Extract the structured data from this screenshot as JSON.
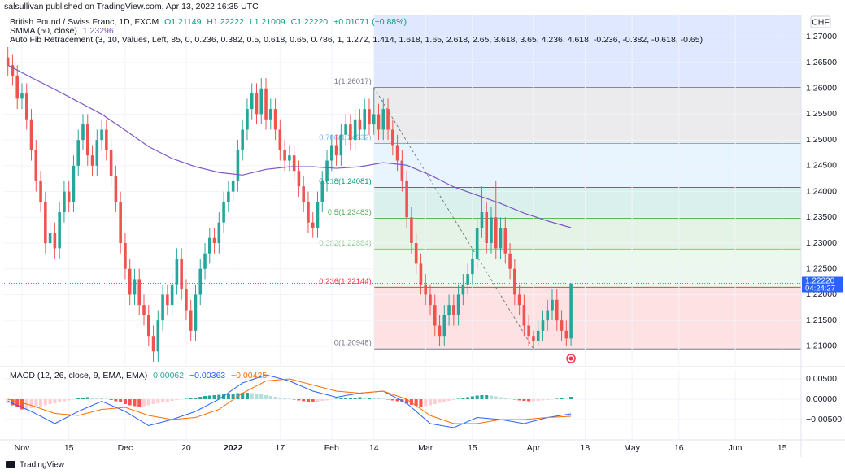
{
  "header": {
    "published": "salsullivan published on TradingView.com, Apr 13, 2022 16:35 UTC",
    "brand": "TradingView"
  },
  "chart_data": {
    "type": "candlestick",
    "symbol": "British Pound / Swiss Franc, 1D, FXCM",
    "ohlc_labels": [
      "O1.21149",
      "H1.22222",
      "L1.21009",
      "C1.22220"
    ],
    "change_label": "+0.01071 (+0.88%)",
    "currency": "CHF",
    "last_price_label": "1.22220",
    "countdown": "04:24:27",
    "up_color": "#26a69a",
    "down_color": "#ef5350",
    "open": [
      1.266,
      1.2645,
      1.2625,
      1.258,
      1.259,
      1.254,
      1.248,
      1.242,
      1.238,
      1.23,
      1.232,
      1.229,
      1.236,
      1.24,
      1.238,
      1.245,
      1.25,
      1.253,
      1.247,
      1.245,
      1.25,
      1.252,
      1.248,
      1.243,
      1.238,
      1.23,
      1.225,
      1.22,
      1.223,
      1.218,
      1.216,
      1.212,
      1.209,
      1.215,
      1.22,
      1.218,
      1.222,
      1.227,
      1.221,
      1.217,
      1.213,
      1.22,
      1.225,
      1.228,
      1.231,
      1.23,
      1.234,
      1.238,
      1.24,
      1.242,
      1.248,
      1.252,
      1.256,
      1.259,
      1.255,
      1.26,
      1.254,
      1.256,
      1.252,
      1.248,
      1.246,
      1.247,
      1.244,
      1.241,
      1.238,
      1.234,
      1.233,
      1.238,
      1.242,
      1.246,
      1.249,
      1.247,
      1.251,
      1.253,
      1.25,
      1.254,
      1.252,
      1.256,
      1.253,
      1.255,
      1.252,
      1.256,
      1.252,
      1.249,
      1.246,
      1.242,
      1.235,
      1.23,
      1.226,
      1.222,
      1.22,
      1.218,
      1.214,
      1.212,
      1.216,
      1.218,
      1.216,
      1.22,
      1.222,
      1.224,
      1.227,
      1.233,
      1.236,
      1.23,
      1.235,
      1.229,
      1.233,
      1.228,
      1.225,
      1.22,
      1.218,
      1.214,
      1.212,
      1.211,
      1.213,
      1.215,
      1.217,
      1.219,
      1.215,
      1.213,
      1.2115
    ],
    "high": [
      1.268,
      1.2665,
      1.2645,
      1.261,
      1.261,
      1.256,
      1.25,
      1.244,
      1.24,
      1.234,
      1.234,
      1.238,
      1.242,
      1.242,
      1.247,
      1.252,
      1.255,
      1.255,
      1.249,
      1.252,
      1.254,
      1.254,
      1.25,
      1.245,
      1.24,
      1.232,
      1.227,
      1.225,
      1.225,
      1.22,
      1.218,
      1.214,
      1.217,
      1.222,
      1.222,
      1.224,
      1.229,
      1.229,
      1.223,
      1.219,
      1.222,
      1.227,
      1.23,
      1.233,
      1.233,
      1.236,
      1.24,
      1.242,
      1.244,
      1.25,
      1.254,
      1.258,
      1.261,
      1.261,
      1.262,
      1.262,
      1.258,
      1.258,
      1.254,
      1.25,
      1.249,
      1.249,
      1.246,
      1.243,
      1.24,
      1.236,
      1.24,
      1.244,
      1.248,
      1.251,
      1.251,
      1.253,
      1.255,
      1.255,
      1.256,
      1.256,
      1.258,
      1.258,
      1.2602,
      1.257,
      1.258,
      1.258,
      1.254,
      1.251,
      1.248,
      1.244,
      1.237,
      1.232,
      1.228,
      1.224,
      1.222,
      1.22,
      1.216,
      1.218,
      1.22,
      1.22,
      1.222,
      1.224,
      1.226,
      1.229,
      1.235,
      1.241,
      1.238,
      1.237,
      1.242,
      1.235,
      1.235,
      1.23,
      1.227,
      1.222,
      1.22,
      1.216,
      1.213,
      1.215,
      1.217,
      1.219,
      1.221,
      1.221,
      1.217,
      1.215,
      1.2222
    ],
    "low": [
      1.2625,
      1.2605,
      1.256,
      1.256,
      1.252,
      1.246,
      1.24,
      1.236,
      1.228,
      1.228,
      1.227,
      1.227,
      1.234,
      1.236,
      1.236,
      1.243,
      1.248,
      1.245,
      1.243,
      1.243,
      1.248,
      1.246,
      1.241,
      1.236,
      1.228,
      1.223,
      1.218,
      1.218,
      1.216,
      1.214,
      1.21,
      1.207,
      1.207,
      1.213,
      1.216,
      1.216,
      1.22,
      1.219,
      1.215,
      1.211,
      1.211,
      1.218,
      1.223,
      1.226,
      1.228,
      1.228,
      1.232,
      1.236,
      1.238,
      1.24,
      1.246,
      1.25,
      1.254,
      1.253,
      1.253,
      1.252,
      1.252,
      1.25,
      1.246,
      1.244,
      1.244,
      1.242,
      1.239,
      1.236,
      1.232,
      1.231,
      1.231,
      1.236,
      1.24,
      1.244,
      1.245,
      1.245,
      1.249,
      1.248,
      1.248,
      1.25,
      1.25,
      1.251,
      1.251,
      1.25,
      1.25,
      1.25,
      1.247,
      1.244,
      1.24,
      1.233,
      1.228,
      1.224,
      1.22,
      1.218,
      1.216,
      1.212,
      1.21,
      1.21,
      1.214,
      1.214,
      1.214,
      1.218,
      1.22,
      1.222,
      1.225,
      1.231,
      1.228,
      1.228,
      1.227,
      1.227,
      1.226,
      1.223,
      1.218,
      1.216,
      1.212,
      1.21,
      1.2095,
      1.21,
      1.211,
      1.213,
      1.215,
      1.213,
      1.211,
      1.21,
      1.2101
    ],
    "close": [
      1.2645,
      1.2625,
      1.258,
      1.259,
      1.254,
      1.248,
      1.242,
      1.238,
      1.23,
      1.232,
      1.229,
      1.236,
      1.24,
      1.238,
      1.245,
      1.25,
      1.253,
      1.247,
      1.245,
      1.25,
      1.252,
      1.248,
      1.243,
      1.238,
      1.23,
      1.225,
      1.22,
      1.223,
      1.218,
      1.216,
      1.212,
      1.209,
      1.215,
      1.22,
      1.218,
      1.222,
      1.227,
      1.221,
      1.217,
      1.213,
      1.22,
      1.225,
      1.228,
      1.231,
      1.23,
      1.234,
      1.238,
      1.24,
      1.242,
      1.248,
      1.252,
      1.256,
      1.259,
      1.255,
      1.26,
      1.254,
      1.256,
      1.252,
      1.248,
      1.246,
      1.247,
      1.244,
      1.241,
      1.238,
      1.234,
      1.233,
      1.238,
      1.242,
      1.246,
      1.249,
      1.247,
      1.251,
      1.253,
      1.25,
      1.254,
      1.252,
      1.256,
      1.253,
      1.255,
      1.252,
      1.256,
      1.252,
      1.249,
      1.246,
      1.242,
      1.235,
      1.23,
      1.226,
      1.222,
      1.22,
      1.218,
      1.214,
      1.212,
      1.216,
      1.218,
      1.216,
      1.22,
      1.222,
      1.224,
      1.227,
      1.233,
      1.236,
      1.23,
      1.235,
      1.229,
      1.233,
      1.228,
      1.225,
      1.22,
      1.218,
      1.214,
      1.212,
      1.211,
      1.213,
      1.215,
      1.217,
      1.219,
      1.215,
      1.213,
      1.2115,
      1.2222
    ],
    "xlim": [
      -0.81,
      169.03
    ],
    "xticks": [
      {
        "value": 3,
        "label": "Nov"
      },
      {
        "value": 13,
        "label": "15"
      },
      {
        "value": 25,
        "label": "Dec"
      },
      {
        "value": 38,
        "label": "20"
      },
      {
        "value": 48,
        "label": "2022"
      },
      {
        "value": 58,
        "label": "17"
      },
      {
        "value": 69,
        "label": "Feb"
      },
      {
        "value": 78,
        "label": "14"
      },
      {
        "value": 89,
        "label": "Mar"
      },
      {
        "value": 99,
        "label": "15"
      },
      {
        "value": 112,
        "label": "Apr"
      },
      {
        "value": 123,
        "label": "18"
      },
      {
        "value": 133,
        "label": "May"
      },
      {
        "value": 143,
        "label": "16"
      },
      {
        "value": 155,
        "label": "Jun"
      },
      {
        "value": 165,
        "label": "15"
      }
    ],
    "ylim": [
      1.2062,
      1.2743
    ],
    "yticks": [
      {
        "value": 1.21,
        "label": "1.21000"
      },
      {
        "value": 1.215,
        "label": "1.21500"
      },
      {
        "value": 1.22,
        "label": "1.22000"
      },
      {
        "value": 1.225,
        "label": "1.22500"
      },
      {
        "value": 1.23,
        "label": "1.23000"
      },
      {
        "value": 1.235,
        "label": "1.23500"
      },
      {
        "value": 1.24,
        "label": "1.24000"
      },
      {
        "value": 1.245,
        "label": "1.24500"
      },
      {
        "value": 1.25,
        "label": "1.25000"
      },
      {
        "value": 1.255,
        "label": "1.25500"
      },
      {
        "value": 1.26,
        "label": "1.26000"
      },
      {
        "value": 1.265,
        "label": "1.26500"
      },
      {
        "value": 1.27,
        "label": "1.27000"
      }
    ],
    "grid": true,
    "smma": {
      "name": "SMMA (50, close)",
      "value_label": "1.23296",
      "color": "#7e57c2",
      "x": [
        0,
        5,
        10,
        15,
        20,
        25,
        30,
        35,
        40,
        45,
        50,
        55,
        60,
        65,
        70,
        75,
        80,
        85,
        90,
        95,
        100,
        105,
        110,
        115,
        120
      ],
      "values": [
        1.2645,
        1.2621,
        1.2598,
        1.2574,
        1.255,
        1.2519,
        1.2487,
        1.2464,
        1.2448,
        1.2437,
        1.2432,
        1.2443,
        1.2448,
        1.2448,
        1.2445,
        1.2448,
        1.2456,
        1.2451,
        1.2432,
        1.2409,
        1.2393,
        1.2377,
        1.2358,
        1.2343,
        1.233
      ]
    },
    "fib": {
      "name": "Auto Fib Retracement (3, 10, Values, Left, 85, 0, 0.236, 0.382, 0.5, 0.618, 0.65, 0.786, 1, 1.272, 1.414, 1.618, 1.65, 2.618, 2.65, 3.618, 3.65, 4.236, 4.618, -0.236, -0.382, -0.618, -0.65)",
      "start_x": 78,
      "end_x": 112,
      "above_color": "#2962ff",
      "levels": [
        {
          "label": "1(1.26017)",
          "value": 1.26017,
          "color": "#787b86"
        },
        {
          "label": "0.786(1.24932)",
          "value": 1.24932,
          "color": "#64b5f6"
        },
        {
          "label": "0.618(1.24081)",
          "value": 1.24081,
          "color": "#089981"
        },
        {
          "label": "0.5(1.23483)",
          "value": 1.23483,
          "color": "#4caf50"
        },
        {
          "label": "0.382(1.22884)",
          "value": 1.22884,
          "color": "#81c784"
        },
        {
          "label": "0.236(1.22144)",
          "value": 1.22144,
          "color": "#f23645"
        },
        {
          "label": "0(1.20948)",
          "value": 1.20948,
          "color": "#787b86"
        }
      ]
    },
    "macd": {
      "name": "MACD (12, 26, close, 9, EMA, EMA)",
      "legend_labels": [
        "0.00062",
        "−0.00363",
        "−0.00425"
      ],
      "ylim": [
        -0.0098,
        0.0072
      ],
      "yticks": [
        {
          "value": 0.005,
          "label": "0.00500"
        },
        {
          "value": 0,
          "label": "0.00000"
        },
        {
          "value": -0.005,
          "label": "−0.00500"
        }
      ],
      "hist_colors": [
        "#26a69a",
        "#b2dfdb",
        "#ffcdd2",
        "#ff5252"
      ],
      "histogram": [
        -0.001,
        -0.0015,
        -0.002,
        -0.0025,
        -0.0025,
        -0.0022,
        -0.002,
        -0.0018,
        -0.0015,
        -0.0012,
        -0.001,
        -0.0008,
        -0.0005,
        -0.0003,
        -0.0001,
        0.0002,
        0.0004,
        0.0005,
        0.0004,
        0.0003,
        0.0002,
        0.0001,
        -0.0002,
        -0.0005,
        -0.0008,
        -0.0012,
        -0.0015,
        -0.0017,
        -0.0018,
        -0.0017,
        -0.0015,
        -0.0012,
        -0.001,
        -0.0008,
        -0.0006,
        -0.0004,
        -0.0002,
        -0.0001,
        0.0001,
        0.0002,
        0.0004,
        0.0006,
        0.0008,
        0.0009,
        0.001,
        0.0011,
        0.0012,
        0.0013,
        0.0014,
        0.0015,
        0.0016,
        0.0016,
        0.0015,
        0.0014,
        0.0012,
        0.001,
        0.0008,
        0.0006,
        0.0004,
        0.0002,
        0.0001,
        -0.0001,
        -0.0003,
        -0.0005,
        -0.0006,
        -0.0007,
        -0.0006,
        -0.0004,
        -0.0003,
        -0.0001,
        0.0001,
        0.0002,
        0.0003,
        0.0004,
        0.0004,
        0.0005,
        0.0004,
        0.0004,
        0.0003,
        0.0002,
        0.0001,
        -0.0001,
        -0.0003,
        -0.0005,
        -0.0008,
        -0.0011,
        -0.0014,
        -0.0016,
        -0.0018,
        -0.0017,
        -0.0015,
        -0.0012,
        -0.0009,
        -0.0006,
        -0.0004,
        -0.0002,
        0.0001,
        0.0003,
        0.0005,
        0.0007,
        0.0009,
        0.001,
        0.001,
        0.0009,
        0.0007,
        0.0005,
        0.0003,
        0.0001,
        -0.0001,
        -0.0003,
        -0.0004,
        -0.0005,
        -0.0005,
        -0.0004,
        -0.0003,
        -0.0002,
        -0.0001,
        0.0001,
        0.0002,
        0.0001,
        0.0006
      ],
      "series": [
        {
          "name": "MACD",
          "color": "#2962ff",
          "x": [
            0,
            5,
            10,
            15,
            20,
            25,
            30,
            35,
            40,
            45,
            50,
            55,
            60,
            65,
            70,
            75,
            80,
            85,
            90,
            95,
            100,
            105,
            110,
            115,
            120
          ],
          "values": [
            -0.0005,
            -0.003,
            -0.006,
            -0.003,
            -0.0005,
            -0.003,
            -0.0065,
            -0.005,
            -0.003,
            0.0,
            0.004,
            0.006,
            0.0045,
            0.002,
            0.0005,
            0.0015,
            0.002,
            -0.001,
            -0.006,
            -0.007,
            -0.0045,
            -0.005,
            -0.006,
            -0.0045,
            -0.0036
          ]
        },
        {
          "name": "Signal",
          "color": "#ff6d00",
          "x": [
            0,
            5,
            10,
            15,
            20,
            25,
            30,
            35,
            40,
            45,
            50,
            55,
            60,
            65,
            70,
            75,
            80,
            85,
            90,
            95,
            100,
            105,
            110,
            115,
            120
          ],
          "values": [
            0.0,
            -0.0015,
            -0.0035,
            -0.004,
            -0.0025,
            -0.002,
            -0.004,
            -0.005,
            -0.0045,
            -0.0025,
            0.0015,
            0.0045,
            0.005,
            0.0035,
            0.002,
            0.0015,
            0.002,
            0.0,
            -0.004,
            -0.006,
            -0.006,
            -0.005,
            -0.005,
            -0.0045,
            -0.0042
          ]
        }
      ]
    }
  }
}
